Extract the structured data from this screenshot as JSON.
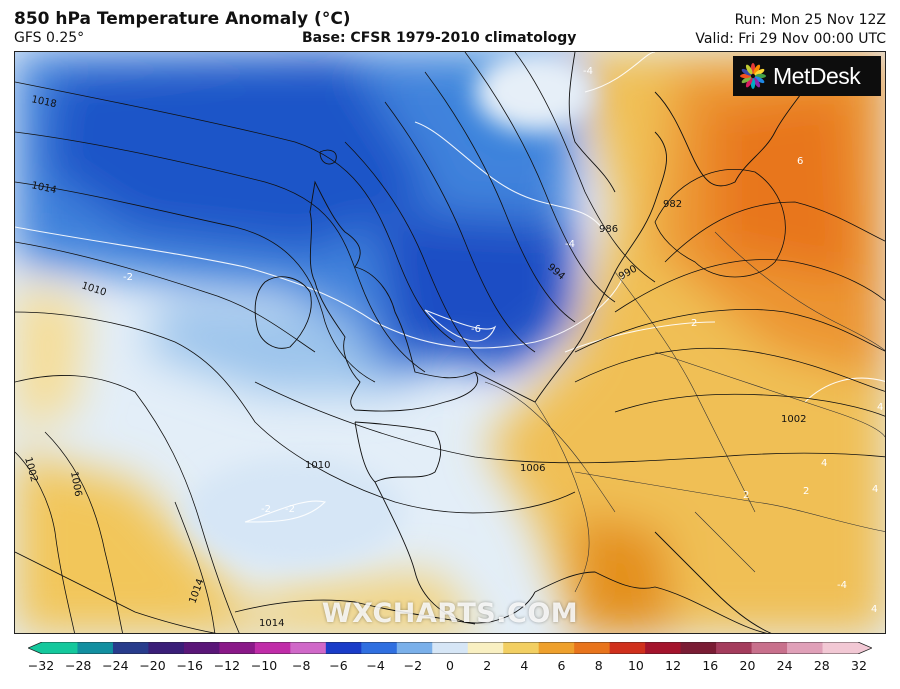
{
  "header": {
    "title": "850 hPa Temperature Anomaly (°C)",
    "model": "GFS 0.25°",
    "base": "Base: CFSR 1979-2010 climatology",
    "run": "Run: Mon 25 Nov 12Z",
    "valid": "Valid: Fri 29 Nov 00:00 UTC"
  },
  "logo": {
    "text": "MetDesk",
    "icon": "sunburst-logo-icon"
  },
  "watermark": "WXCHARTS.COM",
  "isobar_labels": [
    "1018",
    "1014",
    "1010",
    "1006",
    "1002",
    "1010",
    "1006",
    "1014",
    "1014",
    "1002",
    "994",
    "990",
    "986",
    "982"
  ],
  "isotherm_labels": [
    "-2",
    "-6",
    "-4",
    "-4",
    "-2",
    "-2",
    "2",
    "2",
    "4",
    "4",
    "-4",
    "4",
    "2",
    "4",
    "6"
  ],
  "colorbar": {
    "ticks": [
      "−32",
      "−28",
      "−24",
      "−20",
      "−16",
      "−12",
      "−10",
      "−8",
      "−6",
      "−4",
      "−2",
      "0",
      "2",
      "4",
      "6",
      "8",
      "10",
      "12",
      "16",
      "20",
      "24",
      "28",
      "32"
    ],
    "colors": [
      "#14c89c",
      "#128fa0",
      "#283c8c",
      "#3a1e78",
      "#5a1678",
      "#8a1888",
      "#c02ca8",
      "#d068c8",
      "#1a3cc8",
      "#2f6fe0",
      "#7ab0ea",
      "#d6e6f6",
      "#f9f0c2",
      "#f2cf62",
      "#eea02c",
      "#e8741c",
      "#d0301c",
      "#a4142c",
      "#7a1c34",
      "#a43c5c",
      "#c8708c",
      "#e0a0b8",
      "#f2c8d4"
    ]
  }
}
